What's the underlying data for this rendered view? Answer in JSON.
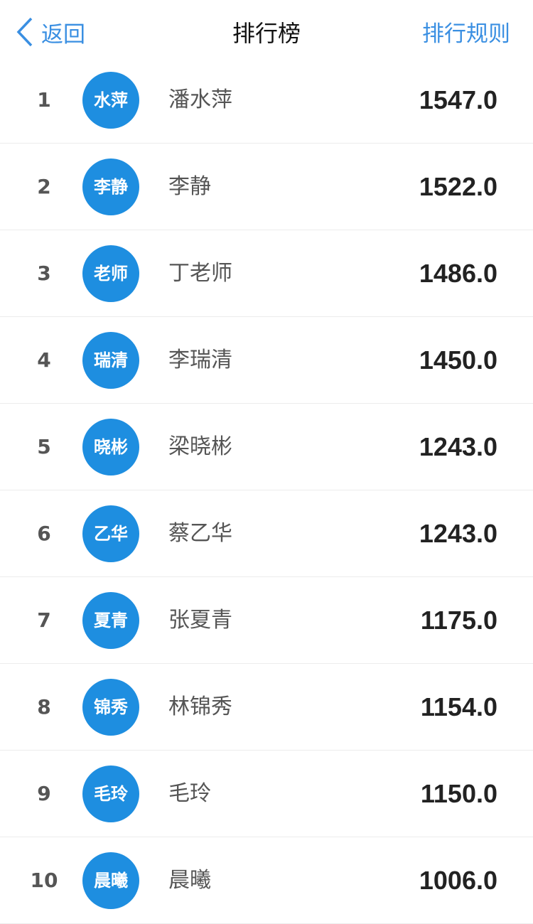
{
  "header": {
    "back_label": "返回",
    "title": "排行榜",
    "rules_label": "排行规则"
  },
  "colors": {
    "accent": "#3a8fe2",
    "avatar": "#1e8ee0"
  },
  "ranking": [
    {
      "rank": "1",
      "avatar": "水萍",
      "name": "潘水萍",
      "score": "1547.0"
    },
    {
      "rank": "2",
      "avatar": "李静",
      "name": "李静",
      "score": "1522.0"
    },
    {
      "rank": "3",
      "avatar": "老师",
      "name": "丁老师",
      "score": "1486.0"
    },
    {
      "rank": "4",
      "avatar": "瑞清",
      "name": "李瑞清",
      "score": "1450.0"
    },
    {
      "rank": "5",
      "avatar": "晓彬",
      "name": "梁晓彬",
      "score": "1243.0"
    },
    {
      "rank": "6",
      "avatar": "乙华",
      "name": "蔡乙华",
      "score": "1243.0"
    },
    {
      "rank": "7",
      "avatar": "夏青",
      "name": "张夏青",
      "score": "1175.0"
    },
    {
      "rank": "8",
      "avatar": "锦秀",
      "name": "林锦秀",
      "score": "1154.0"
    },
    {
      "rank": "9",
      "avatar": "毛玲",
      "name": "毛玲",
      "score": "1150.0"
    },
    {
      "rank": "10",
      "avatar": "晨曦",
      "name": "晨曦",
      "score": "1006.0"
    }
  ]
}
